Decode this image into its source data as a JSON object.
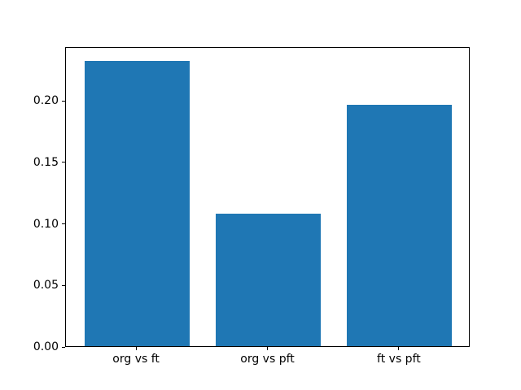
{
  "chart_data": {
    "type": "bar",
    "title": "",
    "xlabel": "",
    "ylabel": "",
    "categories": [
      "org vs ft",
      "org vs pft",
      "ft vs pft"
    ],
    "values": [
      0.232,
      0.108,
      0.196
    ],
    "ylim": [
      0,
      0.2437
    ],
    "yticks": [
      0.0,
      0.05,
      0.1,
      0.15,
      0.2
    ],
    "ytick_labels": [
      "0.00",
      "0.05",
      "0.10",
      "0.15",
      "0.20"
    ],
    "bar_color": "#1f77b4",
    "bar_width_fraction": 0.8,
    "grid": false,
    "legend": "none",
    "axes_frame_color": "#000000",
    "background_color": "#ffffff"
  }
}
